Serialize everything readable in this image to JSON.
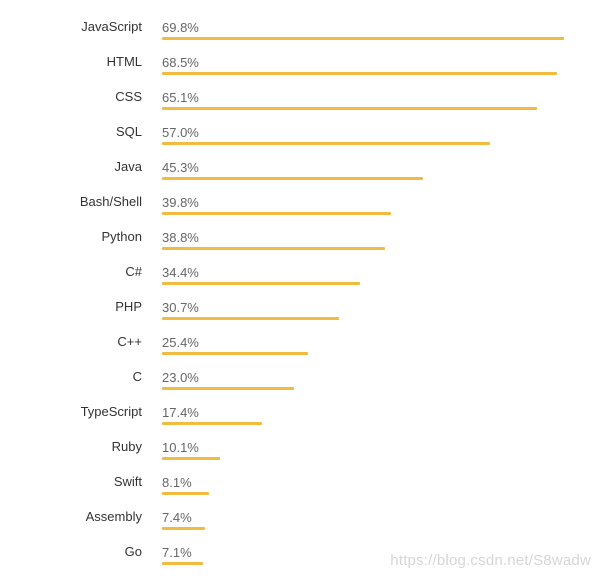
{
  "chart_data": {
    "type": "bar",
    "orientation": "horizontal",
    "categories": [
      "JavaScript",
      "HTML",
      "CSS",
      "SQL",
      "Java",
      "Bash/Shell",
      "Python",
      "C#",
      "PHP",
      "C++",
      "C",
      "TypeScript",
      "Ruby",
      "Swift",
      "Assembly",
      "Go"
    ],
    "values": [
      69.8,
      68.5,
      65.1,
      57.0,
      45.3,
      39.8,
      38.8,
      34.4,
      30.7,
      25.4,
      23.0,
      17.4,
      10.1,
      8.1,
      7.4,
      7.1
    ],
    "value_labels": [
      "69.8%",
      "68.5%",
      "65.1%",
      "57.0%",
      "45.3%",
      "39.8%",
      "38.8%",
      "34.4%",
      "30.7%",
      "25.4%",
      "23.0%",
      "17.4%",
      "10.1%",
      "8.1%",
      "7.4%",
      "7.1%"
    ],
    "xlim": [
      0,
      69.8
    ],
    "grid": false,
    "legend": "none",
    "bar_color": "#f0bb3f"
  },
  "watermark": "https://blog.csdn.net/S8wadw"
}
